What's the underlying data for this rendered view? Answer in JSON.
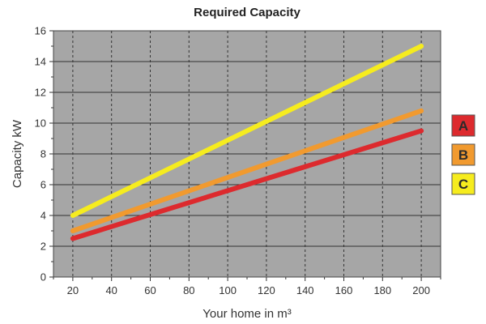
{
  "chart_data": {
    "type": "line",
    "title": "Required Capacity",
    "xlabel": "Your home in m³",
    "ylabel": "Capacity kW",
    "xlim": [
      10,
      210
    ],
    "ylim": [
      0,
      16
    ],
    "x_ticks": [
      "20",
      "40",
      "60",
      "80",
      "100",
      "120",
      "140",
      "160",
      "180",
      "200"
    ],
    "y_ticks": [
      "0",
      "2",
      "4",
      "6",
      "8",
      "10",
      "12",
      "14",
      "16"
    ],
    "grid": true,
    "legend_position": "right",
    "series": [
      {
        "name": "A",
        "color": "#dd2a2e",
        "points": [
          [
            20,
            2.5
          ],
          [
            200,
            9.5
          ]
        ]
      },
      {
        "name": "B",
        "color": "#f19a2f",
        "points": [
          [
            20,
            3.0
          ],
          [
            200,
            10.8
          ]
        ]
      },
      {
        "name": "C",
        "color": "#f6ec1e",
        "points": [
          [
            20,
            4.0
          ],
          [
            200,
            15.0
          ]
        ]
      }
    ],
    "colors": {
      "plot_background": "#a6a6a6",
      "grid": "#333333"
    }
  }
}
